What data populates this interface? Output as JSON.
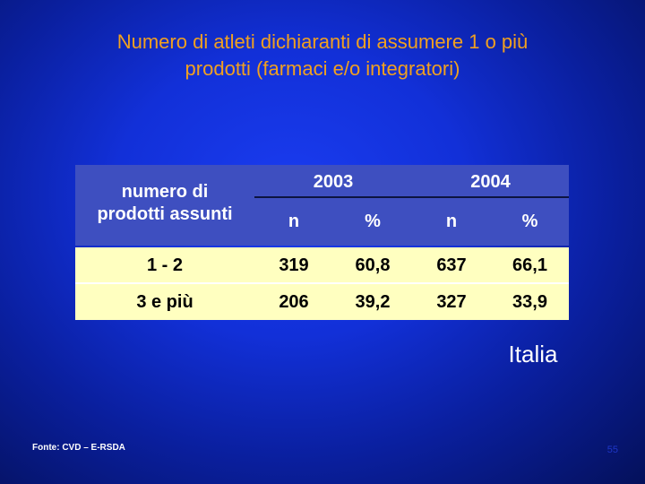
{
  "title": {
    "line1": "Numero di atleti dichiaranti  di assumere 1 o più",
    "line2": "prodotti (farmaci e/o integratori)"
  },
  "table": {
    "row_header_line1": "numero di",
    "row_header_line2": "prodotti assunti",
    "years": [
      "2003",
      "2004"
    ],
    "subheaders": [
      "n",
      "%",
      "n",
      "%"
    ],
    "rows": [
      {
        "label": "1 - 2",
        "values": [
          "319",
          "60,8",
          "637",
          "66,1"
        ]
      },
      {
        "label": "3 e più",
        "values": [
          "206",
          "39,2",
          "327",
          "33,9"
        ]
      }
    ]
  },
  "region_label": "Italia",
  "source": "Fonte: CVD – E-RSDA",
  "page_number": "55",
  "colors": {
    "title": "#f0a020",
    "header_bg": "#3e4fc0",
    "row_bg": "#ffffc0",
    "background": "#1230d8"
  }
}
